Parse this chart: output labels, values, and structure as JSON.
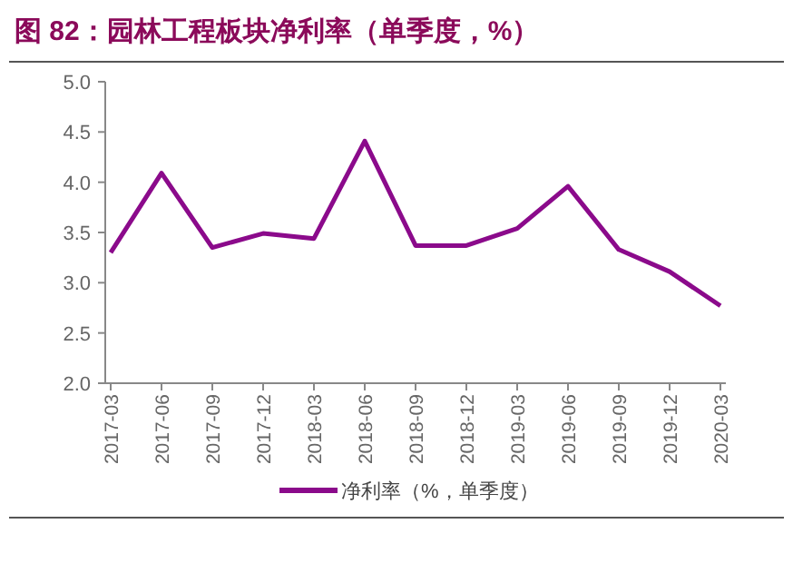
{
  "chart_data": {
    "type": "line",
    "title": "图 82：园林工程板块净利率（单季度，%）",
    "categories": [
      "2017-03",
      "2017-06",
      "2017-09",
      "2017-12",
      "2018-03",
      "2018-06",
      "2018-09",
      "2018-12",
      "2019-03",
      "2019-06",
      "2019-09",
      "2019-12",
      "2020-03"
    ],
    "series": [
      {
        "name": "净利率（%，单季度）",
        "color": "#8b0a8b",
        "values": [
          3.3,
          4.09,
          3.35,
          3.49,
          3.44,
          4.41,
          3.37,
          3.37,
          3.54,
          3.96,
          3.33,
          3.11,
          2.77
        ]
      }
    ],
    "ylim": [
      2.0,
      5.0
    ],
    "yticks": [
      {
        "value": 2.0,
        "label": "2.0"
      },
      {
        "value": 2.5,
        "label": "2.5"
      },
      {
        "value": 3.0,
        "label": "3.0"
      },
      {
        "value": 3.5,
        "label": "3.5"
      },
      {
        "value": 4.0,
        "label": "4.0"
      },
      {
        "value": 4.5,
        "label": "4.5"
      },
      {
        "value": 5.0,
        "label": "5.0"
      }
    ],
    "legend": "bottom",
    "grid": false
  }
}
